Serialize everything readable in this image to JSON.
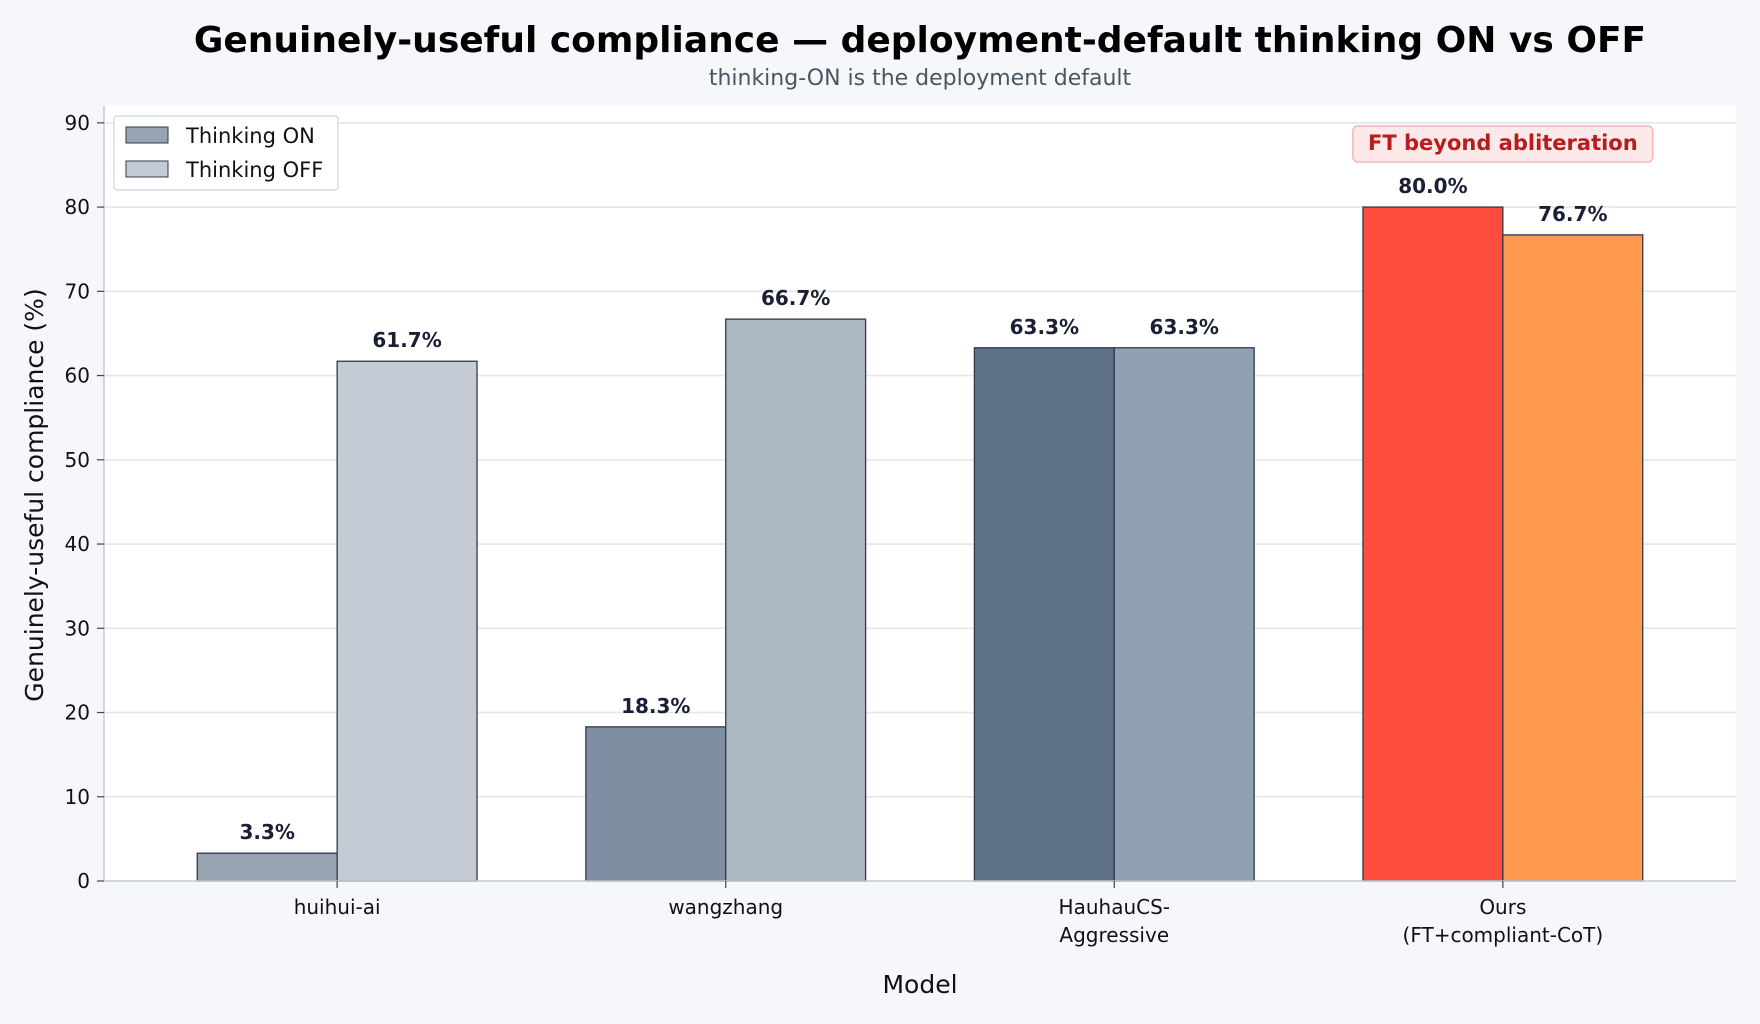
{
  "chart_data": {
    "type": "bar",
    "title": "Genuinely-useful compliance — deployment-default thinking ON vs OFF",
    "subtitle": "thinking-ON is the deployment default",
    "xlabel": "Model",
    "ylabel": "Genuinely-useful compliance (%)",
    "ylim": [
      0,
      92
    ],
    "yticks": [
      0,
      10,
      20,
      30,
      40,
      50,
      60,
      70,
      80,
      90
    ],
    "grid": true,
    "legend_position": "top-left",
    "categories": [
      [
        "huihui-ai"
      ],
      [
        "wangzhang"
      ],
      [
        "HauhauCS-",
        "Aggressive"
      ],
      [
        "Ours",
        "(FT+compliant-CoT)"
      ]
    ],
    "series": [
      {
        "name": "Thinking ON",
        "values": [
          3.3,
          18.3,
          63.3,
          80.0
        ],
        "labels": [
          "3.3%",
          "18.3%",
          "63.3%",
          "80.0%"
        ],
        "legend_color": "#97a3b0",
        "colors": [
          "#97a3b0",
          "#7e8fa4",
          "#5d7187",
          "#ff4d3d"
        ]
      },
      {
        "name": "Thinking OFF",
        "values": [
          61.7,
          66.7,
          63.3,
          76.7
        ],
        "labels": [
          "61.7%",
          "66.7%",
          "63.3%",
          "76.7%"
        ],
        "legend_color": "#c4cbd4",
        "colors": [
          "#c4cbd4",
          "#acb7c4",
          "#91a0b2",
          "#ff9a50"
        ]
      }
    ],
    "annotation": {
      "text": "FT beyond abliteration",
      "category_index": 3
    }
  }
}
